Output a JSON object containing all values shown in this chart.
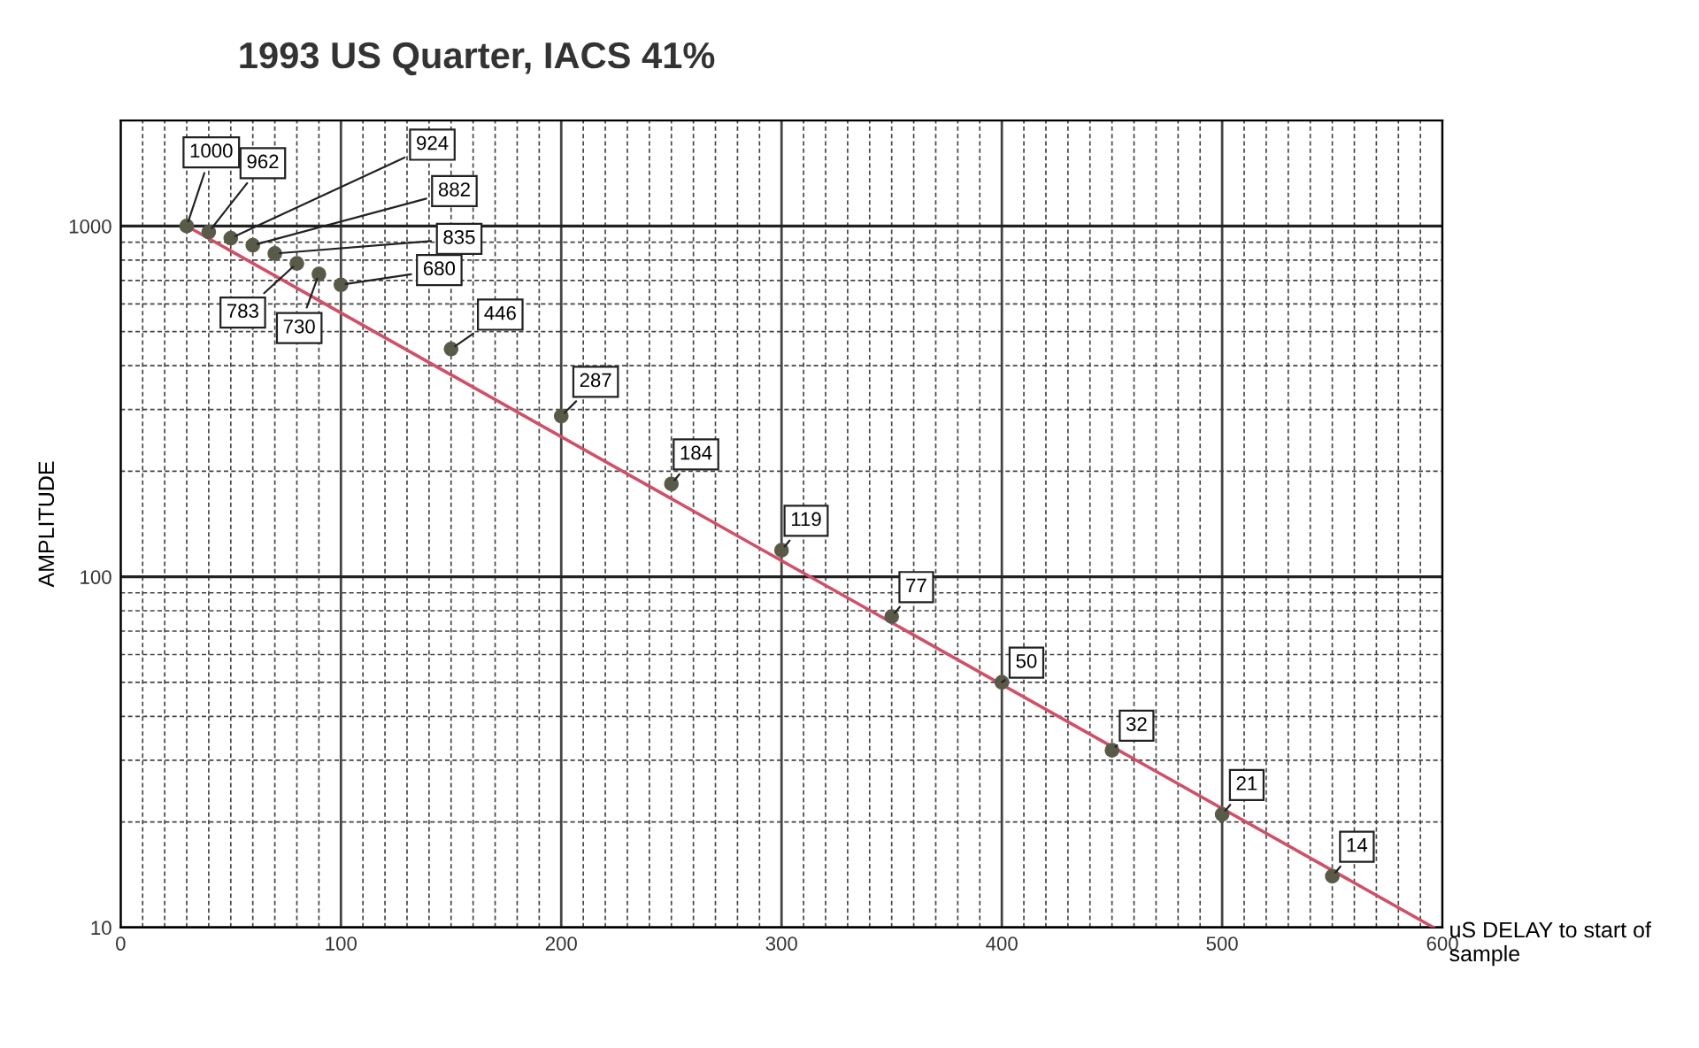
{
  "chart_data": {
    "type": "scatter",
    "title": "1993 US Quarter, IACS 41%",
    "xlabel": "uS DELAY to start of sample",
    "ylabel": "AMPLITUDE",
    "x": [
      30,
      40,
      50,
      60,
      70,
      80,
      90,
      100,
      150,
      200,
      250,
      300,
      350,
      400,
      450,
      500,
      550
    ],
    "series": [
      {
        "color": "#5a5a48",
        "marker": "circle",
        "values": [
          1000,
          962,
          924,
          882,
          835,
          783,
          730,
          680,
          446,
          287,
          184,
          119,
          77,
          50,
          32,
          21,
          14
        ],
        "value_labels": [
          "1000",
          "962",
          "924",
          "882",
          "835",
          "783",
          "730",
          "680",
          "446",
          "287",
          "184",
          "119",
          "77",
          "50",
          "32",
          "21",
          "14"
        ]
      },
      {
        "type": "line",
        "color": "#d05068",
        "marker": "none",
        "x": [
          30,
          596
        ],
        "values": [
          1000,
          10
        ]
      }
    ],
    "log": true,
    "xlim": [
      0,
      600
    ],
    "xticks": [
      0,
      100,
      200,
      300,
      400,
      500,
      600
    ],
    "ylim": [
      10,
      2000
    ],
    "yticks": [
      10,
      100,
      1000
    ],
    "grid": true,
    "legend": false
  }
}
